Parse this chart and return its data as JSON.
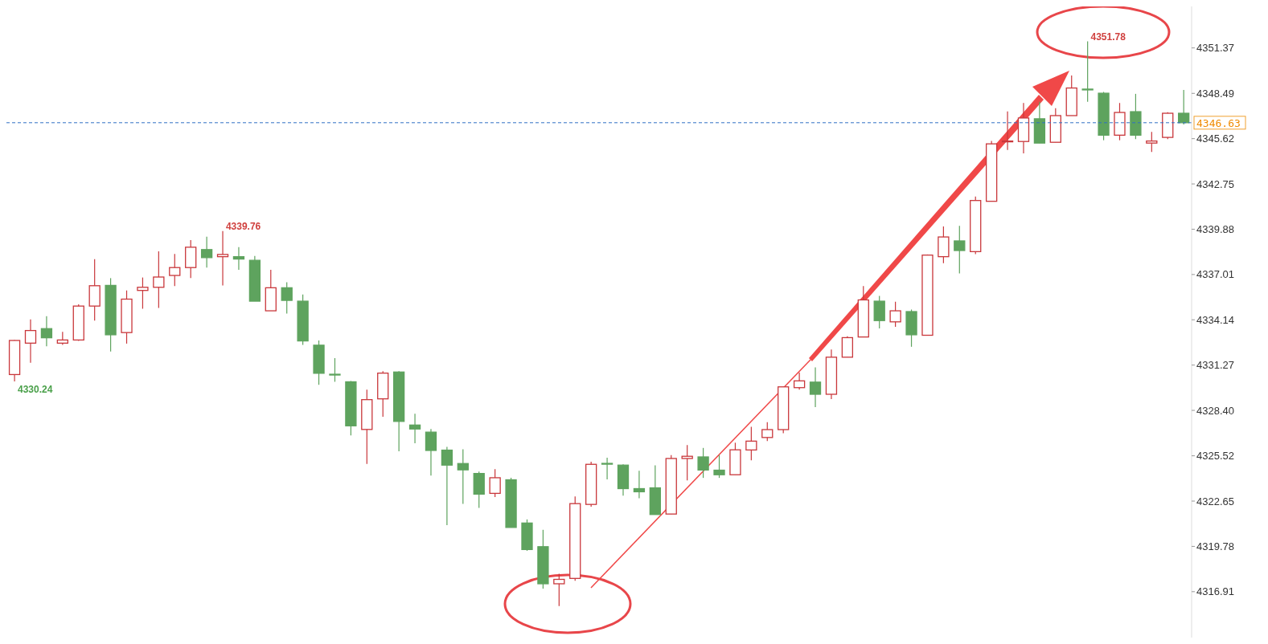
{
  "chart_data": {
    "type": "candlestick",
    "categories": [
      null,
      null,
      null,
      null,
      null,
      null,
      null,
      null,
      null,
      null,
      null,
      null,
      null,
      null,
      null,
      null,
      null,
      null,
      null,
      null,
      null,
      null,
      null,
      null,
      null,
      null,
      null,
      null,
      null,
      null,
      null,
      null,
      null,
      null,
      null,
      null,
      null,
      null,
      null,
      null,
      null,
      null,
      null,
      null,
      null,
      null,
      null,
      null,
      null,
      null,
      null,
      null,
      null,
      null,
      null,
      null,
      null,
      null,
      null,
      null,
      null,
      null,
      null,
      null,
      null,
      null,
      null,
      null,
      null,
      null,
      null,
      null,
      null,
      null
    ],
    "ohlc": [
      [
        4330.67,
        4332.86,
        4330.24,
        4332.83
      ],
      [
        4332.66,
        4334.17,
        4331.42,
        4333.46
      ],
      [
        4333.58,
        4334.37,
        4332.46,
        4333.0
      ],
      [
        4332.66,
        4333.38,
        4332.55,
        4332.86
      ],
      [
        4332.86,
        4335.12,
        4332.8,
        4335.01
      ],
      [
        4335.01,
        4337.98,
        4334.09,
        4336.3
      ],
      [
        4336.32,
        4336.78,
        4332.13,
        4333.19
      ],
      [
        4333.33,
        4336.0,
        4332.63,
        4335.45
      ],
      [
        4336.0,
        4336.82,
        4334.84,
        4336.2
      ],
      [
        4336.2,
        4338.48,
        4334.89,
        4336.85
      ],
      [
        4336.95,
        4338.31,
        4336.28,
        4337.45
      ],
      [
        4337.45,
        4339.19,
        4336.78,
        4338.74
      ],
      [
        4338.59,
        4339.41,
        4337.45,
        4338.08
      ],
      [
        4338.14,
        4339.76,
        4336.32,
        4338.28
      ],
      [
        4338.14,
        4338.74,
        4337.31,
        4337.99
      ],
      [
        4337.91,
        4338.19,
        4335.32,
        4335.32
      ],
      [
        4334.71,
        4337.31,
        4334.71,
        4336.17
      ],
      [
        4336.17,
        4336.52,
        4334.54,
        4335.37
      ],
      [
        4335.32,
        4335.74,
        4332.55,
        4332.8
      ],
      [
        4332.53,
        4332.83,
        4330.02,
        4330.75
      ],
      [
        4330.69,
        4331.71,
        4330.21,
        4330.66
      ],
      [
        4330.21,
        4330.26,
        4326.81,
        4327.42
      ],
      [
        4327.19,
        4329.71,
        4325.01,
        4329.08
      ],
      [
        4329.13,
        4330.88,
        4328.0,
        4330.76
      ],
      [
        4330.83,
        4330.88,
        4325.81,
        4327.7
      ],
      [
        4327.47,
        4328.19,
        4326.31,
        4327.22
      ],
      [
        4327.02,
        4327.22,
        4324.27,
        4325.86
      ],
      [
        4325.88,
        4326.09,
        4321.13,
        4324.93
      ],
      [
        4325.03,
        4325.94,
        4322.47,
        4324.63
      ],
      [
        4324.4,
        4324.52,
        4322.22,
        4323.09
      ],
      [
        4323.14,
        4324.68,
        4322.9,
        4324.13
      ],
      [
        4324.0,
        4324.13,
        4320.98,
        4320.98
      ],
      [
        4321.26,
        4321.49,
        4319.5,
        4319.58
      ],
      [
        4319.76,
        4320.83,
        4317.1,
        4317.41
      ],
      [
        4317.41,
        4318.04,
        4316.0,
        4317.69
      ],
      [
        4317.75,
        4322.95,
        4317.6,
        4322.49
      ],
      [
        4322.44,
        4325.15,
        4322.29,
        4324.98
      ],
      [
        4325.04,
        4325.4,
        4324.02,
        4325.0
      ],
      [
        4324.93,
        4324.98,
        4322.99,
        4323.44
      ],
      [
        4323.44,
        4324.57,
        4322.83,
        4323.24
      ],
      [
        4323.49,
        4324.91,
        4321.8,
        4321.8
      ],
      [
        4321.83,
        4325.57,
        4321.83,
        4325.35
      ],
      [
        4325.35,
        4326.2,
        4323.96,
        4325.49
      ],
      [
        4325.45,
        4326.02,
        4324.12,
        4324.62
      ],
      [
        4324.61,
        4325.57,
        4324.12,
        4324.32
      ],
      [
        4324.32,
        4326.35,
        4324.32,
        4325.9
      ],
      [
        4325.89,
        4327.36,
        4325.24,
        4326.45
      ],
      [
        4326.68,
        4327.65,
        4326.45,
        4327.18
      ],
      [
        4327.18,
        4329.89,
        4326.95,
        4329.89
      ],
      [
        4329.84,
        4330.8,
        4329.71,
        4330.27
      ],
      [
        4330.19,
        4331.13,
        4328.61,
        4329.42
      ],
      [
        4329.42,
        4332.26,
        4329.11,
        4331.77
      ],
      [
        4331.77,
        4333.1,
        4331.77,
        4333.01
      ],
      [
        4333.05,
        4336.28,
        4333.05,
        4335.4
      ],
      [
        4335.32,
        4335.65,
        4333.59,
        4334.09
      ],
      [
        4334.01,
        4335.29,
        4333.69,
        4334.71
      ],
      [
        4334.66,
        4334.79,
        4332.43,
        4333.19
      ],
      [
        4333.16,
        4338.28,
        4333.16,
        4338.24
      ],
      [
        4338.14,
        4340.06,
        4337.73,
        4339.39
      ],
      [
        4339.14,
        4340.1,
        4337.08,
        4338.53
      ],
      [
        4338.46,
        4341.95,
        4338.3,
        4341.7
      ],
      [
        4341.65,
        4345.47,
        4341.65,
        4345.29
      ],
      [
        4345.47,
        4347.35,
        4344.9,
        4345.47
      ],
      [
        4345.44,
        4347.88,
        4344.69,
        4346.93
      ],
      [
        4346.88,
        4347.96,
        4345.34,
        4345.34
      ],
      [
        4345.39,
        4347.55,
        4345.39,
        4347.08
      ],
      [
        4347.08,
        4349.62,
        4347.08,
        4348.83
      ],
      [
        4348.76,
        4351.78,
        4347.96,
        4348.72
      ],
      [
        4348.5,
        4348.58,
        4345.52,
        4345.84
      ],
      [
        4345.84,
        4347.88,
        4345.52,
        4347.28
      ],
      [
        4347.33,
        4348.46,
        4345.59,
        4345.84
      ],
      [
        4345.34,
        4346.05,
        4344.77,
        4345.47
      ],
      [
        4345.7,
        4347.3,
        4345.59,
        4347.23
      ],
      [
        4347.23,
        4348.71,
        4346.52,
        4346.63
      ]
    ],
    "colors": [
      "#c9373b",
      "#c9373b",
      "#5ea35e",
      "#c9373b",
      "#c9373b",
      "#c9373b",
      "#5ea35e",
      "#c9373b",
      "#c9373b",
      "#c9373b",
      "#c9373b",
      "#c9373b",
      "#5ea35e",
      "#c9373b",
      "#5ea35e",
      "#5ea35e",
      "#c9373b",
      "#5ea35e",
      "#5ea35e",
      "#5ea35e",
      "#5ea35e",
      "#5ea35e",
      "#c9373b",
      "#c9373b",
      "#5ea35e",
      "#5ea35e",
      "#5ea35e",
      "#5ea35e",
      "#5ea35e",
      "#5ea35e",
      "#c9373b",
      "#5ea35e",
      "#5ea35e",
      "#5ea35e",
      "#c9373b",
      "#c9373b",
      "#c9373b",
      "#5ea35e",
      "#5ea35e",
      "#5ea35e",
      "#5ea35e",
      "#c9373b",
      "#c9373b",
      "#5ea35e",
      "#5ea35e",
      "#c9373b",
      "#c9373b",
      "#c9373b",
      "#c9373b",
      "#c9373b",
      "#5ea35e",
      "#c9373b",
      "#c9373b",
      "#c9373b",
      "#5ea35e",
      "#c9373b",
      "#5ea35e",
      "#c9373b",
      "#c9373b",
      "#5ea35e",
      "#c9373b",
      "#c9373b",
      "#c9373b",
      "#c9373b",
      "#5ea35e",
      "#c9373b",
      "#c9373b",
      "#5ea35e",
      "#5ea35e",
      "#c9373b",
      "#5ea35e",
      "#c9373b",
      "#c9373b",
      "#5ea35e"
    ],
    "ylim": [
      4314.0,
      4354.0
    ],
    "yticks": [
      4316.91,
      4319.78,
      4322.65,
      4325.52,
      {
        "value": 4328.4,
        "label": "4328.40"
      },
      4331.27,
      4334.14,
      4337.01,
      4339.88,
      4342.75,
      4345.62,
      4348.49,
      4351.37
    ],
    "tick_labels": "y",
    "grid": false,
    "ref_lines": [
      {
        "axis": "y",
        "value": 4346.63,
        "label": "4346.63",
        "color": "#2f6fc4",
        "line_style": "dashed"
      }
    ],
    "annotations": [
      "4351.78",
      "4339.76",
      "4330.24"
    ]
  }
}
